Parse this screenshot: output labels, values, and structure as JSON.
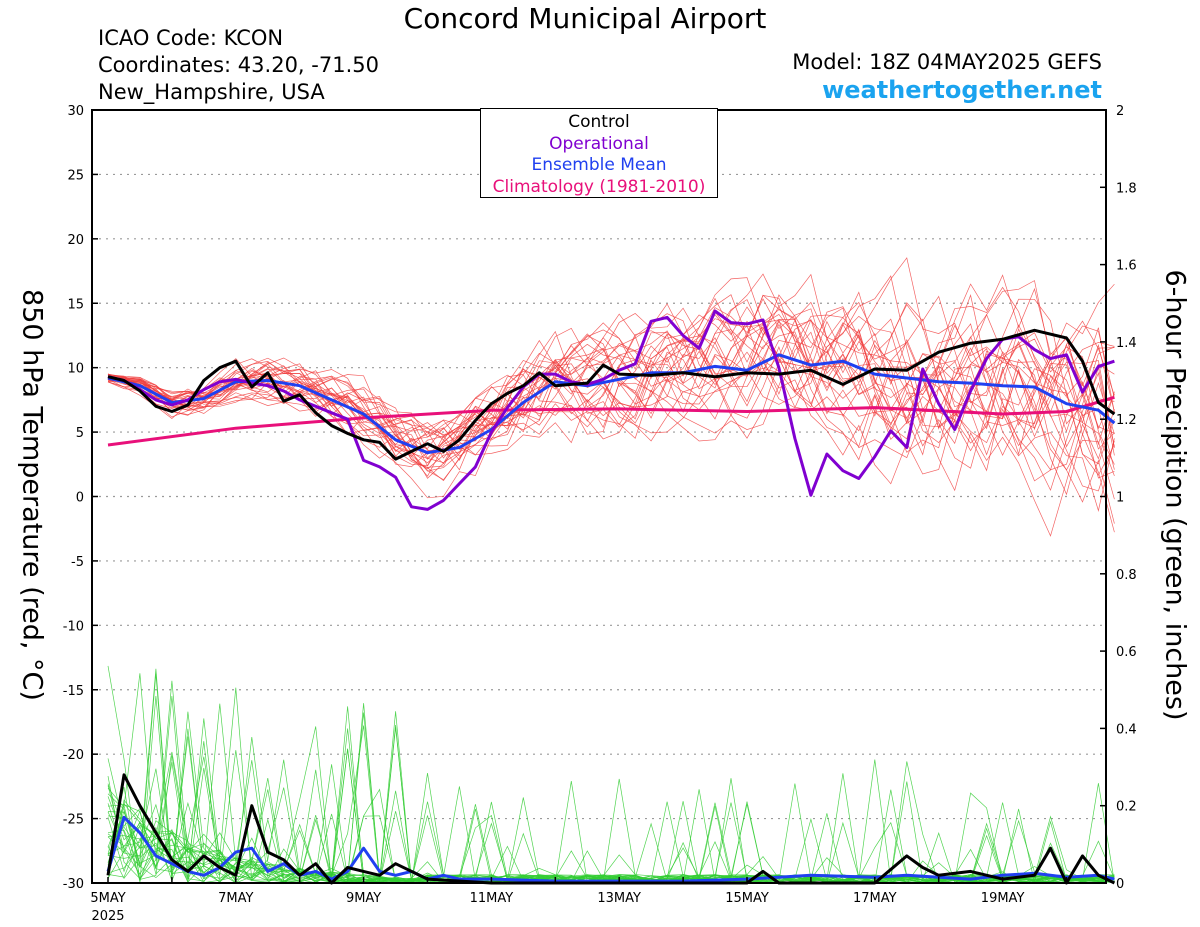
{
  "header": {
    "title": "Concord Municipal Airport",
    "icao": "ICAO Code: KCON",
    "coordinates": "Coordinates: 43.20, -71.50",
    "location": "New_Hampshire, USA",
    "model": "Model: 18Z 04MAY2025 GEFS",
    "site": "weathertogether.net"
  },
  "legend": {
    "control": "Control",
    "operational": "Operational",
    "ensemble_mean": "Ensemble Mean",
    "climatology": "Climatology (1981-2010)"
  },
  "axes": {
    "left_label": "850 hPa Temperature (red, °C)",
    "right_label": "6-hour Precipition (green, inches)"
  },
  "colors": {
    "control": "#000000",
    "operational": "#8000d0",
    "ensemble_mean": "#2040f0",
    "climatology": "#e8107a",
    "members_temp": "#f03c3c",
    "members_precip": "#33cc33",
    "site_link": "#1aa3ef"
  },
  "chart_data": {
    "type": "line",
    "x_unit": "days since 5MAY 00Z",
    "xlim": [
      0,
      15.75
    ],
    "x_ticks": [
      {
        "x": 0,
        "label": "5MAY",
        "sub": "2025"
      },
      {
        "x": 2,
        "label": "7MAY"
      },
      {
        "x": 4,
        "label": "9MAY"
      },
      {
        "x": 6,
        "label": "11MAY"
      },
      {
        "x": 8,
        "label": "13MAY"
      },
      {
        "x": 10,
        "label": "15MAY"
      },
      {
        "x": 12,
        "label": "17MAY"
      },
      {
        "x": 14,
        "label": "19MAY"
      }
    ],
    "y_left": {
      "lim": [
        -30,
        30
      ],
      "ticks": [
        30,
        25,
        20,
        15,
        10,
        5,
        0,
        -5,
        -10,
        -15,
        -20,
        -25,
        -30
      ]
    },
    "y_right": {
      "lim": [
        0,
        2
      ],
      "ticks": [
        "2",
        "1.8",
        "1.6",
        "1.4",
        "1.2",
        "1",
        "0.8",
        "0.6",
        "0.4",
        "0.2",
        "0"
      ]
    },
    "grid": true,
    "temperature_series": [
      {
        "name": "Control",
        "x": [
          0,
          0.25,
          0.5,
          0.75,
          1,
          1.25,
          1.5,
          1.75,
          2,
          2.25,
          2.5,
          2.75,
          3,
          3.25,
          3.5,
          3.75,
          4,
          4.25,
          4.5,
          4.75,
          5,
          5.25,
          5.5,
          5.75,
          6,
          6.25,
          6.5,
          6.75,
          7,
          7.25,
          7.5,
          7.75,
          8,
          8.5,
          9,
          9.5,
          10,
          10.5,
          11,
          11.5,
          12,
          12.5,
          13,
          13.5,
          14,
          14.5,
          15,
          15.25,
          15.5,
          15.75
        ],
        "values": [
          9.3,
          9,
          8.2,
          7,
          6.6,
          7.1,
          9,
          10,
          10.5,
          8.5,
          9.6,
          7.4,
          7.9,
          6.5,
          5.5,
          4.9,
          4.4,
          4.2,
          2.9,
          3.5,
          4.1,
          3.5,
          4.4,
          5.9,
          7.2,
          8,
          8.6,
          9.6,
          8.6,
          8.7,
          8.8,
          10.2,
          9.5,
          9.4,
          9.6,
          9.3,
          9.6,
          9.5,
          9.8,
          8.7,
          9.9,
          9.8,
          11.2,
          11.9,
          12.2,
          12.9,
          12.3,
          10.5,
          7.3,
          6.4
        ]
      },
      {
        "name": "Operational",
        "x": [
          0,
          0.25,
          0.5,
          0.75,
          1,
          1.25,
          1.5,
          1.75,
          2,
          2.25,
          2.5,
          2.75,
          3,
          3.25,
          3.5,
          3.75,
          4,
          4.25,
          4.5,
          4.75,
          5,
          5.25,
          5.5,
          5.75,
          6,
          6.25,
          6.5,
          6.75,
          7,
          7.25,
          7.5,
          7.75,
          8,
          8.25,
          8.5,
          8.75,
          9,
          9.25,
          9.5,
          9.75,
          10,
          10.25,
          10.5,
          10.75,
          11,
          11.25,
          11.5,
          11.75,
          12,
          12.25,
          12.5,
          12.75,
          13,
          13.25,
          13.5,
          13.75,
          14,
          14.25,
          14.5,
          14.75,
          15,
          15.25,
          15.5,
          15.75
        ],
        "values": [
          9.3,
          9,
          8.3,
          7.5,
          7.1,
          7.5,
          8.3,
          8.9,
          9.1,
          8.8,
          8.6,
          8.2,
          7.5,
          7,
          6.5,
          6,
          2.8,
          2.3,
          1.5,
          -0.8,
          -1,
          -0.3,
          1,
          2.3,
          5,
          6.9,
          8.5,
          9.5,
          9.5,
          8.9,
          8.7,
          9.1,
          9.8,
          10.3,
          13.6,
          13.9,
          12.5,
          11.5,
          14.4,
          13.5,
          13.4,
          13.7,
          10,
          4.5,
          0.1,
          3.3,
          2,
          1.4,
          3.1,
          5.1,
          3.8,
          9.9,
          7.2,
          5.2,
          8.2,
          10.7,
          12.2,
          12.4,
          11.4,
          10.7,
          11,
          8.1,
          10.1,
          10.5
        ]
      },
      {
        "name": "Ensemble Mean",
        "x": [
          0,
          0.5,
          1,
          1.5,
          2,
          2.5,
          3,
          3.5,
          4,
          4.5,
          5,
          5.5,
          6,
          6.5,
          7,
          7.5,
          8,
          8.5,
          9,
          9.5,
          10,
          10.5,
          11,
          11.5,
          12,
          12.5,
          13,
          13.5,
          14,
          14.5,
          15,
          15.5,
          15.75
        ],
        "values": [
          9.2,
          8.6,
          7.3,
          7.6,
          8.9,
          9,
          8.6,
          7.5,
          6.4,
          4.4,
          3.4,
          3.8,
          5.2,
          7.3,
          8.9,
          8.6,
          9.1,
          9.6,
          9.6,
          10.1,
          9.8,
          11,
          10.2,
          10.5,
          9.5,
          9.2,
          8.9,
          8.8,
          8.6,
          8.5,
          7.2,
          6.7,
          5.7
        ]
      },
      {
        "name": "Climatology (1981-2010)",
        "x": [
          0,
          2,
          4,
          6,
          8,
          10,
          12,
          14,
          15,
          15.75
        ],
        "values": [
          4,
          5.3,
          6.1,
          6.7,
          6.8,
          6.6,
          6.9,
          6.4,
          6.6,
          7.7
        ]
      }
    ],
    "precip_series": [
      {
        "name": "Control",
        "x": [
          0,
          0.25,
          0.5,
          1,
          1.25,
          1.5,
          1.75,
          2,
          2.25,
          2.5,
          2.75,
          3,
          3.25,
          3.5,
          3.75,
          4,
          4.25,
          4.5,
          5,
          6,
          10,
          10.25,
          10.5,
          12,
          12.5,
          12.75,
          13,
          13.5,
          14,
          14.5,
          14.75,
          15,
          15.25,
          15.5,
          15.75
        ],
        "values": [
          0.02,
          0.28,
          0.2,
          0.06,
          0.03,
          0.07,
          0.04,
          0.02,
          0.2,
          0.08,
          0.06,
          0.02,
          0.05,
          0,
          0.04,
          0.03,
          0.02,
          0.05,
          0.01,
          0,
          0,
          0.03,
          0,
          0,
          0.07,
          0.04,
          0.02,
          0.03,
          0.01,
          0.02,
          0.09,
          0,
          0.07,
          0.02,
          0
        ]
      },
      {
        "name": "Ensemble Mean",
        "x": [
          0,
          0.25,
          0.5,
          0.75,
          1,
          1.25,
          1.5,
          1.75,
          2,
          2.25,
          2.5,
          2.75,
          3,
          3.25,
          3.5,
          3.75,
          4,
          4.25,
          4.5,
          4.75,
          5,
          5.25,
          5.5,
          5.75,
          6,
          7,
          8,
          9,
          10,
          11,
          12,
          12.5,
          13,
          13.5,
          14,
          14.5,
          15,
          15.5,
          15.75
        ],
        "values": [
          0.03,
          0.17,
          0.13,
          0.07,
          0.05,
          0.03,
          0.02,
          0.04,
          0.08,
          0.09,
          0.03,
          0.05,
          0.02,
          0.03,
          0.01,
          0.03,
          0.09,
          0.03,
          0.02,
          0.03,
          0.01,
          0.02,
          0.01,
          0.01,
          0.01,
          0.005,
          0.005,
          0.005,
          0.01,
          0.02,
          0.015,
          0.02,
          0.015,
          0.01,
          0.02,
          0.025,
          0.015,
          0.02,
          0.01
        ]
      }
    ]
  }
}
